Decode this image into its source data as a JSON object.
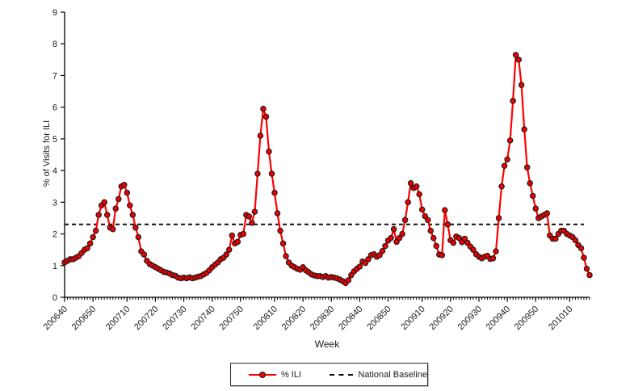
{
  "chart_data": {
    "type": "line",
    "title": "",
    "xlabel": "Week",
    "ylabel": "% of Visits for ILI",
    "ylim": [
      0,
      9
    ],
    "y_ticks": [
      0,
      1,
      2,
      3,
      4,
      5,
      6,
      7,
      8,
      9
    ],
    "grid": false,
    "legend_position": "bottom",
    "x_tick_labels": [
      "200640",
      "200650",
      "200710",
      "200720",
      "200730",
      "200740",
      "200750",
      "200810",
      "200820",
      "200830",
      "200840",
      "200850",
      "200910",
      "200920",
      "200930",
      "200940",
      "200950",
      "201010"
    ],
    "x_tick_indices": [
      0,
      10,
      22,
      32,
      42,
      52,
      62,
      74,
      84,
      94,
      104,
      114,
      126,
      136,
      146,
      156,
      166,
      178
    ],
    "series": [
      {
        "name": "% ILI",
        "type": "line_with_markers",
        "color": "#ff0000",
        "marker": "circle",
        "marker_fill": "#ee0000",
        "marker_edge": "#1a1a1a",
        "weeks": [
          "200640",
          "200641",
          "200642",
          "200643",
          "200644",
          "200645",
          "200646",
          "200647",
          "200648",
          "200649",
          "200650",
          "200651",
          "200652",
          "200701",
          "200702",
          "200703",
          "200704",
          "200705",
          "200706",
          "200707",
          "200708",
          "200709",
          "200710",
          "200711",
          "200712",
          "200713",
          "200714",
          "200715",
          "200716",
          "200717",
          "200718",
          "200719",
          "200720",
          "200721",
          "200722",
          "200723",
          "200724",
          "200725",
          "200726",
          "200727",
          "200728",
          "200729",
          "200730",
          "200731",
          "200732",
          "200733",
          "200734",
          "200735",
          "200736",
          "200737",
          "200738",
          "200739",
          "200740",
          "200741",
          "200742",
          "200743",
          "200744",
          "200745",
          "200746",
          "200747",
          "200748",
          "200749",
          "200750",
          "200751",
          "200752",
          "200801",
          "200802",
          "200803",
          "200804",
          "200805",
          "200806",
          "200807",
          "200808",
          "200809",
          "200810",
          "200811",
          "200812",
          "200813",
          "200814",
          "200815",
          "200816",
          "200817",
          "200818",
          "200819",
          "200820",
          "200821",
          "200822",
          "200823",
          "200824",
          "200825",
          "200826",
          "200827",
          "200828",
          "200829",
          "200830",
          "200831",
          "200832",
          "200833",
          "200834",
          "200835",
          "200836",
          "200837",
          "200838",
          "200839",
          "200840",
          "200841",
          "200842",
          "200843",
          "200844",
          "200845",
          "200846",
          "200847",
          "200848",
          "200849",
          "200850",
          "200851",
          "200852",
          "200901",
          "200902",
          "200903",
          "200904",
          "200905",
          "200906",
          "200907",
          "200908",
          "200909",
          "200910",
          "200911",
          "200912",
          "200913",
          "200914",
          "200915",
          "200916",
          "200917",
          "200918",
          "200919",
          "200920",
          "200921",
          "200922",
          "200923",
          "200924",
          "200925",
          "200926",
          "200927",
          "200928",
          "200929",
          "200930",
          "200931",
          "200932",
          "200933",
          "200934",
          "200935",
          "200936",
          "200937",
          "200938",
          "200939",
          "200940",
          "200941",
          "200942",
          "200943",
          "200944",
          "200945",
          "200946",
          "200947",
          "200948",
          "200949",
          "200950",
          "200951",
          "200952",
          "201001",
          "201002",
          "201003",
          "201004",
          "201005",
          "201006",
          "201007",
          "201008",
          "201009",
          "201010",
          "201011",
          "201012",
          "201013",
          "201014",
          "201015",
          "201016",
          "201017"
        ],
        "values": [
          1.1,
          1.15,
          1.2,
          1.2,
          1.25,
          1.3,
          1.4,
          1.5,
          1.55,
          1.7,
          1.9,
          2.1,
          2.6,
          2.9,
          3.0,
          2.6,
          2.2,
          2.15,
          2.8,
          3.1,
          3.5,
          3.55,
          3.3,
          2.9,
          2.6,
          2.2,
          1.9,
          1.45,
          1.35,
          1.15,
          1.05,
          1.0,
          0.95,
          0.9,
          0.85,
          0.8,
          0.78,
          0.75,
          0.7,
          0.68,
          0.62,
          0.6,
          0.62,
          0.6,
          0.63,
          0.6,
          0.62,
          0.65,
          0.67,
          0.72,
          0.77,
          0.85,
          0.95,
          1.03,
          1.1,
          1.2,
          1.25,
          1.35,
          1.5,
          1.95,
          1.7,
          1.75,
          1.97,
          2.0,
          2.6,
          2.55,
          2.35,
          2.7,
          3.9,
          5.1,
          5.95,
          5.7,
          4.6,
          3.9,
          3.3,
          2.65,
          2.1,
          1.7,
          1.3,
          1.1,
          1.0,
          0.95,
          0.9,
          0.87,
          0.95,
          0.85,
          0.79,
          0.72,
          0.69,
          0.67,
          0.67,
          0.64,
          0.67,
          0.62,
          0.64,
          0.62,
          0.6,
          0.56,
          0.51,
          0.45,
          0.54,
          0.7,
          0.82,
          0.9,
          0.97,
          1.13,
          1.08,
          1.2,
          1.33,
          1.36,
          1.28,
          1.33,
          1.46,
          1.62,
          1.79,
          1.87,
          2.15,
          1.75,
          1.87,
          2.0,
          2.44,
          3.0,
          3.6,
          3.45,
          3.5,
          3.25,
          2.77,
          2.56,
          2.44,
          2.1,
          1.87,
          1.62,
          1.35,
          1.33,
          2.75,
          2.3,
          1.8,
          1.72,
          1.92,
          1.87,
          1.74,
          1.85,
          1.72,
          1.6,
          1.5,
          1.36,
          1.28,
          1.23,
          1.28,
          1.31,
          1.21,
          1.23,
          1.45,
          2.5,
          3.5,
          4.15,
          4.35,
          4.95,
          6.2,
          7.65,
          7.5,
          6.7,
          5.3,
          4.1,
          3.6,
          3.2,
          2.8,
          2.5,
          2.55,
          2.6,
          2.65,
          1.95,
          1.85,
          1.85,
          2.0,
          2.1,
          2.1,
          2.0,
          1.95,
          1.9,
          1.8,
          1.65,
          1.55,
          1.25,
          0.9,
          0.7
        ]
      },
      {
        "name": "National Baseline",
        "type": "hline",
        "style": "dashed",
        "color": "#111111",
        "value": 2.3
      }
    ]
  },
  "legend": {
    "items": [
      {
        "label": "% ILI"
      },
      {
        "label": "National Baseline"
      }
    ]
  },
  "colors": {
    "series_line": "#ff0000",
    "marker_fill": "#ee0000",
    "marker_edge": "#1a1a1a",
    "baseline": "#111111",
    "axis": "#000000",
    "text": "#1a1a1a",
    "background": "#ffffff"
  }
}
